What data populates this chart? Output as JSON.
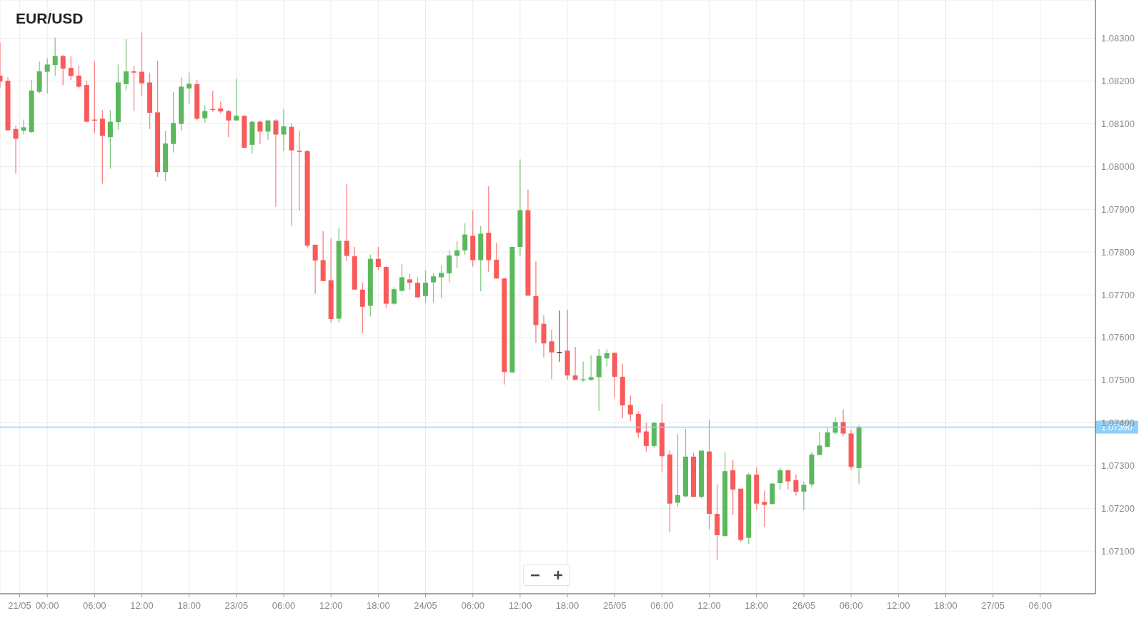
{
  "chart_data": {
    "type": "candlestick",
    "title": "EUR/USD",
    "x": [
      "--05-21T18:00",
      "--05-21T19:00",
      "--05-21T20:00",
      "--05-21T21:00",
      "--05-21T22:00",
      "--05-21T23:00",
      "--05-22T00:00",
      "--05-22T01:00",
      "--05-22T02:00",
      "--05-22T03:00",
      "--05-22T04:00",
      "--05-22T05:00",
      "--05-22T06:00",
      "--05-22T07:00",
      "--05-22T08:00",
      "--05-22T09:00",
      "--05-22T10:00",
      "--05-22T11:00",
      "--05-22T12:00",
      "--05-22T13:00",
      "--05-22T14:00",
      "--05-22T15:00",
      "--05-22T16:00",
      "--05-22T17:00",
      "--05-22T18:00",
      "--05-22T19:00",
      "--05-22T20:00",
      "--05-22T21:00",
      "--05-22T22:00",
      "--05-22T23:00",
      "--05-23T00:00",
      "--05-23T01:00",
      "--05-23T02:00",
      "--05-23T03:00",
      "--05-23T04:00",
      "--05-23T05:00",
      "--05-23T06:00",
      "--05-23T07:00",
      "--05-23T08:00",
      "--05-23T09:00",
      "--05-23T10:00",
      "--05-23T11:00",
      "--05-23T12:00",
      "--05-23T13:00",
      "--05-23T14:00",
      "--05-23T15:00",
      "--05-23T16:00",
      "--05-23T17:00",
      "--05-23T18:00",
      "--05-23T19:00",
      "--05-23T20:00",
      "--05-23T21:00",
      "--05-23T22:00",
      "--05-23T23:00",
      "--05-24T00:00",
      "--05-24T01:00",
      "--05-24T02:00",
      "--05-24T03:00",
      "--05-24T04:00",
      "--05-24T05:00",
      "--05-24T06:00",
      "--05-24T07:00",
      "--05-24T08:00",
      "--05-24T09:00",
      "--05-24T10:00",
      "--05-24T11:00",
      "--05-24T12:00",
      "--05-24T13:00",
      "--05-24T14:00",
      "--05-24T15:00",
      "--05-24T16:00",
      "--05-24T17:00",
      "--05-24T18:00",
      "--05-24T19:00",
      "--05-24T20:00",
      "--05-24T21:00",
      "--05-24T22:00",
      "--05-24T23:00",
      "--05-25T00:00",
      "--05-25T01:00",
      "--05-25T02:00",
      "--05-25T03:00",
      "--05-25T04:00",
      "--05-25T05:00",
      "--05-25T06:00",
      "--05-25T07:00",
      "--05-25T08:00",
      "--05-25T09:00",
      "--05-25T10:00",
      "--05-25T11:00",
      "--05-25T12:00",
      "--05-25T13:00",
      "--05-25T14:00",
      "--05-25T15:00",
      "--05-25T16:00",
      "--05-25T17:00",
      "--05-25T18:00",
      "--05-25T19:00",
      "--05-25T20:00",
      "--05-25T21:00",
      "--05-25T22:00",
      "--05-25T23:00",
      "--05-26T00:00",
      "--05-26T01:00",
      "--05-26T02:00",
      "--05-26T03:00",
      "--05-26T04:00",
      "--05-26T05:00",
      "--05-26T06:00",
      "--05-26T07:00"
    ],
    "ohlc": [
      [
        1.08213,
        1.0829,
        1.08185,
        1.08199
      ],
      [
        1.08201,
        1.08209,
        1.08084,
        1.08085
      ],
      [
        1.08088,
        1.08096,
        1.07983,
        1.08065
      ],
      [
        1.08084,
        1.0811,
        1.08075,
        1.08092
      ],
      [
        1.08081,
        1.08203,
        1.08078,
        1.08178
      ],
      [
        1.08175,
        1.08246,
        1.08171,
        1.08223
      ],
      [
        1.08222,
        1.08254,
        1.08171,
        1.08239
      ],
      [
        1.08238,
        1.08302,
        1.08213,
        1.08259
      ],
      [
        1.08259,
        1.08261,
        1.08191,
        1.08229
      ],
      [
        1.08231,
        1.08258,
        1.08203,
        1.08212
      ],
      [
        1.08213,
        1.08237,
        1.08184,
        1.08187
      ],
      [
        1.08191,
        1.08201,
        1.08104,
        1.08105
      ],
      [
        1.0811,
        1.08246,
        1.08078,
        1.08109
      ],
      [
        1.08112,
        1.08132,
        1.0796,
        1.08072
      ],
      [
        1.08069,
        1.08132,
        1.07995,
        1.08105
      ],
      [
        1.08104,
        1.08239,
        1.08086,
        1.08197
      ],
      [
        1.08193,
        1.08298,
        1.08179,
        1.08223
      ],
      [
        1.08223,
        1.08236,
        1.0813,
        1.0822
      ],
      [
        1.08222,
        1.08314,
        1.08164,
        1.08195
      ],
      [
        1.08197,
        1.0822,
        1.08088,
        1.08126
      ],
      [
        1.08127,
        1.08248,
        1.07976,
        1.07987
      ],
      [
        1.07987,
        1.08083,
        1.07966,
        1.08054
      ],
      [
        1.08053,
        1.08174,
        1.08033,
        1.08102
      ],
      [
        1.081,
        1.08209,
        1.08084,
        1.08187
      ],
      [
        1.08183,
        1.0822,
        1.08146,
        1.08194
      ],
      [
        1.08193,
        1.08203,
        1.08109,
        1.08112
      ],
      [
        1.08113,
        1.08143,
        1.08103,
        1.0813
      ],
      [
        1.08135,
        1.08178,
        1.08128,
        1.08133
      ],
      [
        1.08136,
        1.08152,
        1.08124,
        1.08129
      ],
      [
        1.0813,
        1.08133,
        1.08069,
        1.08108
      ],
      [
        1.08108,
        1.08206,
        1.08108,
        1.08119
      ],
      [
        1.08119,
        1.0812,
        1.08043,
        1.08044
      ],
      [
        1.08051,
        1.08108,
        1.0803,
        1.08105
      ],
      [
        1.08105,
        1.08108,
        1.08053,
        1.08082
      ],
      [
        1.08082,
        1.08109,
        1.08063,
        1.08108
      ],
      [
        1.08108,
        1.08111,
        1.07906,
        1.08075
      ],
      [
        1.08075,
        1.08134,
        1.08036,
        1.08094
      ],
      [
        1.08093,
        1.08101,
        1.07861,
        1.08038
      ],
      [
        1.08037,
        1.08084,
        1.07897,
        1.08035
      ],
      [
        1.08036,
        1.08039,
        1.0781,
        1.07815
      ],
      [
        1.07817,
        1.07818,
        1.07702,
        1.0778
      ],
      [
        1.07781,
        1.07849,
        1.07732,
        1.07732
      ],
      [
        1.07734,
        1.07832,
        1.07634,
        1.07643
      ],
      [
        1.07644,
        1.07856,
        1.07634,
        1.07826
      ],
      [
        1.07826,
        1.0796,
        1.07779,
        1.07791
      ],
      [
        1.0779,
        1.07812,
        1.07712,
        1.07712
      ],
      [
        1.07712,
        1.07729,
        1.0761,
        1.07672
      ],
      [
        1.07674,
        1.07794,
        1.07649,
        1.07784
      ],
      [
        1.07784,
        1.07812,
        1.07758,
        1.07765
      ],
      [
        1.07765,
        1.07767,
        1.07669,
        1.07679
      ],
      [
        1.07679,
        1.07718,
        1.07676,
        1.07713
      ],
      [
        1.07709,
        1.07771,
        1.07708,
        1.07741
      ],
      [
        1.07736,
        1.07749,
        1.07712,
        1.07728
      ],
      [
        1.07728,
        1.07741,
        1.07693,
        1.07694
      ],
      [
        1.07697,
        1.07757,
        1.07682,
        1.07728
      ],
      [
        1.07729,
        1.07751,
        1.07682,
        1.07743
      ],
      [
        1.07741,
        1.07769,
        1.07692,
        1.07751
      ],
      [
        1.0775,
        1.07804,
        1.07729,
        1.07792
      ],
      [
        1.07791,
        1.07826,
        1.07762,
        1.07804
      ],
      [
        1.07804,
        1.07868,
        1.07793,
        1.07841
      ],
      [
        1.07838,
        1.07898,
        1.07766,
        1.07781
      ],
      [
        1.07781,
        1.07861,
        1.07708,
        1.07843
      ],
      [
        1.07845,
        1.07954,
        1.07754,
        1.07781
      ],
      [
        1.07782,
        1.07822,
        1.07737,
        1.07738
      ],
      [
        1.07738,
        1.0774,
        1.0749,
        1.07519
      ],
      [
        1.07518,
        1.07812,
        1.07517,
        1.07812
      ],
      [
        1.07812,
        1.08017,
        1.0779,
        1.07898
      ],
      [
        1.07898,
        1.07946,
        1.07697,
        1.07698
      ],
      [
        1.07697,
        1.07778,
        1.07587,
        1.07629
      ],
      [
        1.07632,
        1.07652,
        1.07553,
        1.07586
      ],
      [
        1.07591,
        1.07618,
        1.07502,
        1.07565
      ],
      [
        1.07566,
        1.07663,
        1.07543,
        1.07566
      ],
      [
        1.07569,
        1.07665,
        1.07501,
        1.07511
      ],
      [
        1.07511,
        1.07578,
        1.075,
        1.07501
      ],
      [
        1.075,
        1.07544,
        1.07496,
        1.07502
      ],
      [
        1.07501,
        1.07558,
        1.07499,
        1.07507
      ],
      [
        1.07507,
        1.07573,
        1.07428,
        1.07557
      ],
      [
        1.07551,
        1.07572,
        1.07532,
        1.07563
      ],
      [
        1.07564,
        1.07565,
        1.07459,
        1.07508
      ],
      [
        1.07508,
        1.07539,
        1.07411,
        1.07441
      ],
      [
        1.07442,
        1.07464,
        1.07404,
        1.0742
      ],
      [
        1.07421,
        1.07427,
        1.07365,
        1.07377
      ],
      [
        1.0738,
        1.074,
        1.07333,
        1.07346
      ],
      [
        1.07346,
        1.07403,
        1.07341,
        1.074
      ],
      [
        1.074,
        1.07444,
        1.07285,
        1.07322
      ],
      [
        1.07326,
        1.07336,
        1.07144,
        1.07211
      ],
      [
        1.07213,
        1.07374,
        1.07203,
        1.07231
      ],
      [
        1.07228,
        1.07386,
        1.07226,
        1.07321
      ],
      [
        1.07321,
        1.0733,
        1.07226,
        1.07227
      ],
      [
        1.07227,
        1.07335,
        1.07223,
        1.07335
      ],
      [
        1.07333,
        1.07407,
        1.07151,
        1.07187
      ],
      [
        1.07187,
        1.07256,
        1.07078,
        1.07137
      ],
      [
        1.07135,
        1.07331,
        1.07134,
        1.07287
      ],
      [
        1.07289,
        1.07314,
        1.07184,
        1.07244
      ],
      [
        1.07246,
        1.07246,
        1.07122,
        1.07126
      ],
      [
        1.07131,
        1.07283,
        1.07117,
        1.07279
      ],
      [
        1.07279,
        1.07296,
        1.07195,
        1.07211
      ],
      [
        1.07215,
        1.07242,
        1.07156,
        1.07208
      ],
      [
        1.0721,
        1.07259,
        1.07209,
        1.07258
      ],
      [
        1.07259,
        1.07296,
        1.07244,
        1.07289
      ],
      [
        1.07289,
        1.0729,
        1.07244,
        1.07263
      ],
      [
        1.07266,
        1.07279,
        1.0723,
        1.07239
      ],
      [
        1.07239,
        1.07262,
        1.07195,
        1.07255
      ],
      [
        1.07256,
        1.07332,
        1.07249,
        1.07326
      ],
      [
        1.07325,
        1.07378,
        1.07324,
        1.07347
      ],
      [
        1.07344,
        1.07388,
        1.07343,
        1.07378
      ],
      [
        1.07377,
        1.07413,
        1.07372,
        1.07402
      ],
      [
        1.07402,
        1.07431,
        1.07369,
        1.07375
      ],
      [
        1.07375,
        1.07383,
        1.0729,
        1.07297
      ],
      [
        1.07294,
        1.07395,
        1.07256,
        1.0739
      ]
    ],
    "colors": [
      "#f95a5a",
      "#f95a5a",
      "#f95a5a",
      "#5cb85c",
      "#5cb85c",
      "#5cb85c",
      "#5cb85c",
      "#5cb85c",
      "#f95a5a",
      "#f95a5a",
      "#f95a5a",
      "#f95a5a",
      "#f95a5a",
      "#f95a5a",
      "#5cb85c",
      "#5cb85c",
      "#5cb85c",
      "#f95a5a",
      "#f95a5a",
      "#f95a5a",
      "#f95a5a",
      "#5cb85c",
      "#5cb85c",
      "#5cb85c",
      "#5cb85c",
      "#f95a5a",
      "#5cb85c",
      "#f95a5a",
      "#f95a5a",
      "#f95a5a",
      "#5cb85c",
      "#f95a5a",
      "#5cb85c",
      "#f95a5a",
      "#5cb85c",
      "#f95a5a",
      "#5cb85c",
      "#f95a5a",
      "#f95a5a",
      "#f95a5a",
      "#f95a5a",
      "#f95a5a",
      "#f95a5a",
      "#5cb85c",
      "#f95a5a",
      "#f95a5a",
      "#f95a5a",
      "#5cb85c",
      "#f95a5a",
      "#f95a5a",
      "#5cb85c",
      "#5cb85c",
      "#f95a5a",
      "#f95a5a",
      "#5cb85c",
      "#5cb85c",
      "#5cb85c",
      "#5cb85c",
      "#5cb85c",
      "#5cb85c",
      "#f95a5a",
      "#5cb85c",
      "#f95a5a",
      "#f95a5a",
      "#f95a5a",
      "#5cb85c",
      "#5cb85c",
      "#f95a5a",
      "#f95a5a",
      "#f95a5a",
      "#f95a5a",
      "#333333",
      "#f95a5a",
      "#f95a5a",
      "#5cb85c",
      "#5cb85c",
      "#5cb85c",
      "#5cb85c",
      "#f95a5a",
      "#f95a5a",
      "#f95a5a",
      "#f95a5a",
      "#f95a5a",
      "#5cb85c",
      "#f95a5a",
      "#f95a5a",
      "#5cb85c",
      "#5cb85c",
      "#f95a5a",
      "#5cb85c",
      "#f95a5a",
      "#f95a5a",
      "#5cb85c",
      "#f95a5a",
      "#f95a5a",
      "#5cb85c",
      "#f95a5a",
      "#f95a5a",
      "#5cb85c",
      "#5cb85c",
      "#f95a5a",
      "#f95a5a",
      "#5cb85c",
      "#5cb85c",
      "#5cb85c",
      "#5cb85c",
      "#5cb85c",
      "#f95a5a",
      "#f95a5a",
      "#5cb85c"
    ],
    "xlim": [
      "--05-21T18:00",
      "--05-27T13:00"
    ],
    "xticks": [
      {
        "value": "--05-21T20:30",
        "label": "21/05"
      },
      {
        "value": "--05-22T00:00",
        "label": "00:00"
      },
      {
        "value": "--05-22T06:00",
        "label": "06:00"
      },
      {
        "value": "--05-22T12:00",
        "label": "12:00"
      },
      {
        "value": "--05-22T18:00",
        "label": "18:00"
      },
      {
        "value": "--05-23T00:00",
        "label": "23/05"
      },
      {
        "value": "--05-23T06:00",
        "label": "06:00"
      },
      {
        "value": "--05-23T12:00",
        "label": "12:00"
      },
      {
        "value": "--05-23T18:00",
        "label": "18:00"
      },
      {
        "value": "--05-24T00:00",
        "label": "24/05"
      },
      {
        "value": "--05-24T06:00",
        "label": "06:00"
      },
      {
        "value": "--05-24T12:00",
        "label": "12:00"
      },
      {
        "value": "--05-24T18:00",
        "label": "18:00"
      },
      {
        "value": "--05-25T00:00",
        "label": "25/05"
      },
      {
        "value": "--05-25T06:00",
        "label": "06:00"
      },
      {
        "value": "--05-25T12:00",
        "label": "12:00"
      },
      {
        "value": "--05-25T18:00",
        "label": "18:00"
      },
      {
        "value": "--05-26T00:00",
        "label": "26/05"
      },
      {
        "value": "--05-26T06:00",
        "label": "06:00"
      },
      {
        "value": "--05-26T12:00",
        "label": "12:00"
      },
      {
        "value": "--05-26T18:00",
        "label": "18:00"
      },
      {
        "value": "--05-27T00:00",
        "label": "27/05"
      },
      {
        "value": "--05-27T06:00",
        "label": "06:00"
      }
    ],
    "ylim": [
      1.07,
      1.0839
    ],
    "yticks": [
      {
        "value": 1.071,
        "label": "1.07100"
      },
      {
        "value": 1.072,
        "label": "1.07200"
      },
      {
        "value": 1.073,
        "label": "1.07300"
      },
      {
        "value": 1.074,
        "label": "1.07400"
      },
      {
        "value": 1.075,
        "label": "1.07500"
      },
      {
        "value": 1.076,
        "label": "1.07600"
      },
      {
        "value": 1.077,
        "label": "1.07700"
      },
      {
        "value": 1.078,
        "label": "1.07800"
      },
      {
        "value": 1.079,
        "label": "1.07900"
      },
      {
        "value": 1.08,
        "label": "1.08000"
      },
      {
        "value": 1.081,
        "label": "1.08100"
      },
      {
        "value": 1.082,
        "label": "1.08200"
      },
      {
        "value": 1.083,
        "label": "1.08300"
      }
    ],
    "ref_lines": [
      {
        "axis": "y",
        "value": 1.0739,
        "label": "1.07390",
        "color": "#8fd0fa"
      }
    ],
    "grid": true
  }
}
